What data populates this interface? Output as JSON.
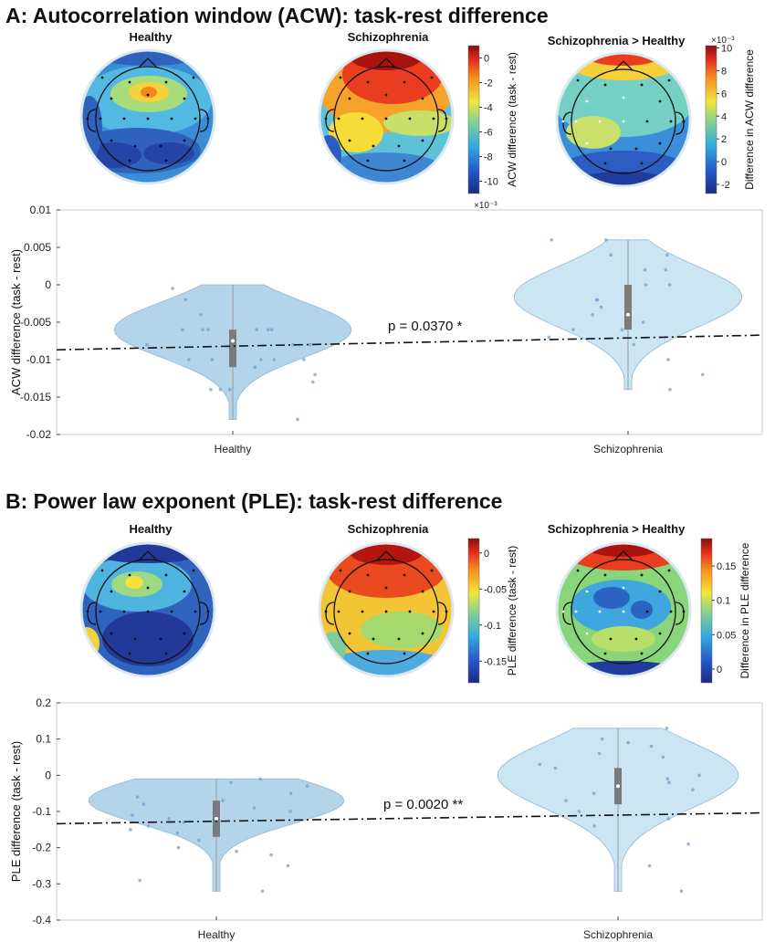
{
  "panels": [
    {
      "id": "A",
      "title": "A: Autocorrelation window (ACW): task-rest difference",
      "topomaps": [
        {
          "title": "Healthy",
          "palette": "healthy_acw"
        },
        {
          "title": "Schizophrenia",
          "palette": "scz_acw"
        },
        {
          "title": "Schizophrenia > Healthy",
          "palette": "diff_acw"
        }
      ],
      "colorbars": [
        {
          "label": "ACW difference (task - rest)",
          "ticks": [
            "0",
            "-2",
            "-4",
            "-6",
            "-8",
            "-10"
          ],
          "exponent": "×10⁻³",
          "range": [
            -11,
            1
          ]
        },
        {
          "label": "Difference in ACW difference",
          "ticks": [
            "10",
            "8",
            "6",
            "4",
            "2",
            "0",
            "-2"
          ],
          "exponent": "×10⁻³",
          "range": [
            -2.8,
            10.2
          ]
        }
      ],
      "pvalue": "p = 0.0370 *"
    },
    {
      "id": "B",
      "title": "B: Power law exponent (PLE): task-rest difference",
      "topomaps": [
        {
          "title": "Healthy",
          "palette": "healthy_ple"
        },
        {
          "title": "Schizophrenia",
          "palette": "scz_ple"
        },
        {
          "title": "Schizophrenia > Healthy",
          "palette": "diff_ple"
        }
      ],
      "colorbars": [
        {
          "label": "PLE difference (task - rest)",
          "ticks": [
            "0",
            "-0.05",
            "-0.1",
            "-0.15"
          ],
          "exponent": "",
          "range": [
            -0.18,
            0.02
          ]
        },
        {
          "label": "Difference in PLE difference",
          "ticks": [
            "0.15",
            "0.1",
            "0.05",
            "0"
          ],
          "exponent": "",
          "range": [
            -0.02,
            0.19
          ]
        }
      ],
      "pvalue": "p = 0.0020 **"
    }
  ],
  "chart_data": [
    {
      "type": "violin",
      "ylabel": "ACW difference (task - rest)",
      "categories": [
        "Healthy",
        "Schizophrenia"
      ],
      "ylim": [
        -0.02,
        0.01
      ],
      "yticks": [
        -0.02,
        -0.015,
        -0.01,
        -0.005,
        0,
        0.005,
        0.01
      ],
      "ytick_labels": [
        "-0.02",
        "-0.015",
        "-0.01",
        "-0.005",
        "0",
        "0.005",
        "0.01"
      ],
      "series": [
        {
          "category": "Healthy",
          "min": -0.018,
          "max": 0.0,
          "median": -0.0075,
          "q1": -0.011,
          "q3": -0.006,
          "points": [
            -0.006,
            -0.006,
            -0.008,
            -0.01,
            -0.01,
            -0.01,
            -0.012,
            -0.014,
            -0.014,
            -0.014,
            -0.013,
            -0.006,
            -0.006,
            -0.006,
            -0.006,
            -0.008,
            -0.01,
            -0.01,
            -0.018,
            -0.0005,
            -0.002,
            -0.004,
            -0.008,
            -0.011
          ]
        },
        {
          "category": "Schizophrenia",
          "min": -0.014,
          "max": 0.006,
          "median": -0.004,
          "q1": -0.006,
          "q3": 0.0,
          "points": [
            0.006,
            0.006,
            0.004,
            0.002,
            0.0,
            -0.002,
            -0.004,
            -0.004,
            -0.006,
            -0.006,
            -0.008,
            -0.01,
            -0.012,
            -0.014,
            0.004,
            -0.002,
            -0.003,
            -0.005,
            -0.007,
            0.0,
            0.002
          ]
        }
      ],
      "trend_line": {
        "x": [
          "Healthy",
          "Schizophrenia"
        ],
        "y": [
          -0.0082,
          -0.0071
        ]
      }
    },
    {
      "type": "violin",
      "ylabel": "PLE difference (task - rest)",
      "categories": [
        "Healthy",
        "Schizophrenia"
      ],
      "ylim": [
        -0.4,
        0.2
      ],
      "yticks": [
        -0.4,
        -0.3,
        -0.2,
        -0.1,
        0,
        0.1,
        0.2
      ],
      "ytick_labels": [
        "-0.4",
        "-0.3",
        "-0.2",
        "-0.1",
        "0",
        "0.1",
        "0.2"
      ],
      "series": [
        {
          "category": "Healthy",
          "min": -0.32,
          "max": -0.01,
          "median": -0.12,
          "q1": -0.17,
          "q3": -0.07,
          "points": [
            -0.01,
            -0.02,
            -0.05,
            -0.07,
            -0.08,
            -0.1,
            -0.12,
            -0.15,
            -0.18,
            -0.2,
            -0.22,
            -0.25,
            -0.29,
            -0.32,
            -0.09,
            -0.11,
            -0.13,
            -0.16,
            -0.21,
            -0.03,
            -0.06,
            -0.14
          ]
        },
        {
          "category": "Schizophrenia",
          "min": -0.32,
          "max": 0.13,
          "median": -0.03,
          "q1": -0.08,
          "q3": 0.02,
          "points": [
            0.13,
            0.1,
            0.08,
            0.05,
            0.03,
            0.0,
            -0.02,
            -0.04,
            -0.07,
            -0.1,
            -0.14,
            -0.19,
            -0.25,
            -0.32,
            0.06,
            -0.05,
            -0.01,
            0.02,
            -0.12,
            0.09
          ]
        }
      ],
      "trend_line": {
        "x": [
          "Healthy",
          "Schizophrenia"
        ],
        "y": [
          -0.127,
          -0.11
        ]
      }
    }
  ]
}
